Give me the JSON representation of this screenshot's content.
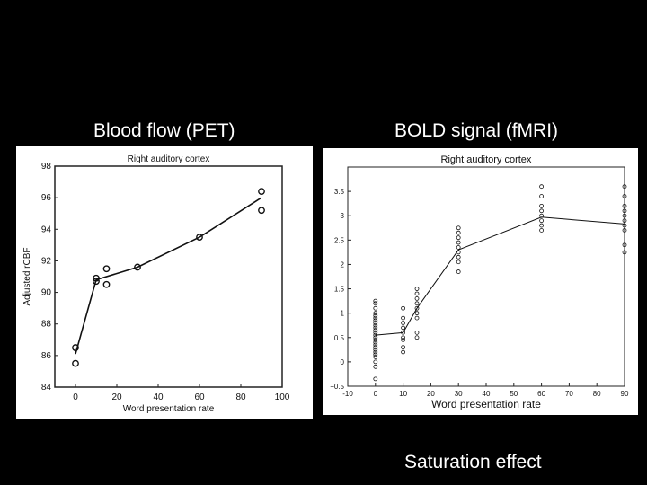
{
  "headings": {
    "left": "Blood flow (PET)",
    "right": "BOLD signal (fMRI)",
    "footer": "Saturation  effect"
  },
  "chart_data": [
    {
      "type": "line",
      "title": "Right auditory cortex",
      "xlabel": "Word presentation rate",
      "ylabel": "Adjusted rCBF",
      "xlim": [
        -10,
        100
      ],
      "ylim": [
        84,
        98
      ],
      "xticks": [
        0,
        20,
        40,
        60,
        80,
        100
      ],
      "yticks": [
        84,
        86,
        88,
        90,
        92,
        94,
        96,
        98
      ],
      "points": [
        {
          "x": 0,
          "y": 86.5
        },
        {
          "x": 0,
          "y": 85.5
        },
        {
          "x": 10,
          "y": 90.9
        },
        {
          "x": 10,
          "y": 90.7
        },
        {
          "x": 15,
          "y": 91.5
        },
        {
          "x": 15,
          "y": 90.5
        },
        {
          "x": 30,
          "y": 91.6
        },
        {
          "x": 60,
          "y": 93.5
        },
        {
          "x": 90,
          "y": 96.4
        },
        {
          "x": 90,
          "y": 95.2
        }
      ],
      "line": [
        {
          "x": 0,
          "y": 86.1
        },
        {
          "x": 10,
          "y": 90.8
        },
        {
          "x": 30,
          "y": 91.6
        },
        {
          "x": 60,
          "y": 93.5
        },
        {
          "x": 90,
          "y": 96.0
        }
      ]
    },
    {
      "type": "line",
      "title": "Right auditory cortex",
      "xlabel": "Word presentation rate",
      "ylabel": "",
      "xlim": [
        -10,
        90
      ],
      "ylim": [
        -0.5,
        4
      ],
      "xticks": [
        -10,
        0,
        10,
        20,
        30,
        40,
        50,
        60,
        70,
        80,
        90
      ],
      "yticks": [
        -0.5,
        0,
        0.5,
        1,
        1.5,
        2,
        2.5,
        3,
        3.5
      ],
      "ytick_labels": [
        "−0.5",
        "0",
        "0.5",
        "1",
        "1.5",
        "2",
        "2.5",
        "3",
        "3.5"
      ],
      "points": [
        {
          "x": 0,
          "y": 1.25
        },
        {
          "x": 0,
          "y": 1.2
        },
        {
          "x": 0,
          "y": 1.1
        },
        {
          "x": 0,
          "y": 1.0
        },
        {
          "x": 0,
          "y": 0.95
        },
        {
          "x": 0,
          "y": 0.9
        },
        {
          "x": 0,
          "y": 0.85
        },
        {
          "x": 0,
          "y": 0.8
        },
        {
          "x": 0,
          "y": 0.75
        },
        {
          "x": 0,
          "y": 0.7
        },
        {
          "x": 0,
          "y": 0.65
        },
        {
          "x": 0,
          "y": 0.6
        },
        {
          "x": 0,
          "y": 0.55
        },
        {
          "x": 0,
          "y": 0.5
        },
        {
          "x": 0,
          "y": 0.45
        },
        {
          "x": 0,
          "y": 0.4
        },
        {
          "x": 0,
          "y": 0.35
        },
        {
          "x": 0,
          "y": 0.3
        },
        {
          "x": 0,
          "y": 0.25
        },
        {
          "x": 0,
          "y": 0.2
        },
        {
          "x": 0,
          "y": 0.15
        },
        {
          "x": 0,
          "y": 0.1
        },
        {
          "x": 0,
          "y": 0.0
        },
        {
          "x": 0,
          "y": -0.1
        },
        {
          "x": 0,
          "y": -0.35
        },
        {
          "x": 10,
          "y": 1.1
        },
        {
          "x": 10,
          "y": 0.9
        },
        {
          "x": 10,
          "y": 0.8
        },
        {
          "x": 10,
          "y": 0.7
        },
        {
          "x": 10,
          "y": 0.6
        },
        {
          "x": 10,
          "y": 0.5
        },
        {
          "x": 10,
          "y": 0.45
        },
        {
          "x": 10,
          "y": 0.3
        },
        {
          "x": 10,
          "y": 0.2
        },
        {
          "x": 15,
          "y": 1.5
        },
        {
          "x": 15,
          "y": 1.4
        },
        {
          "x": 15,
          "y": 1.3
        },
        {
          "x": 15,
          "y": 1.2
        },
        {
          "x": 15,
          "y": 1.1
        },
        {
          "x": 15,
          "y": 1.0
        },
        {
          "x": 15,
          "y": 0.9
        },
        {
          "x": 15,
          "y": 0.6
        },
        {
          "x": 15,
          "y": 0.5
        },
        {
          "x": 30,
          "y": 2.75
        },
        {
          "x": 30,
          "y": 2.65
        },
        {
          "x": 30,
          "y": 2.55
        },
        {
          "x": 30,
          "y": 2.45
        },
        {
          "x": 30,
          "y": 2.35
        },
        {
          "x": 30,
          "y": 2.25
        },
        {
          "x": 30,
          "y": 2.15
        },
        {
          "x": 30,
          "y": 2.05
        },
        {
          "x": 30,
          "y": 1.85
        },
        {
          "x": 60,
          "y": 3.6
        },
        {
          "x": 60,
          "y": 3.4
        },
        {
          "x": 60,
          "y": 3.2
        },
        {
          "x": 60,
          "y": 3.1
        },
        {
          "x": 60,
          "y": 3.0
        },
        {
          "x": 60,
          "y": 2.9
        },
        {
          "x": 60,
          "y": 2.8
        },
        {
          "x": 60,
          "y": 2.7
        },
        {
          "x": 90,
          "y": 3.6
        },
        {
          "x": 90,
          "y": 3.4
        },
        {
          "x": 90,
          "y": 3.2
        },
        {
          "x": 90,
          "y": 3.1
        },
        {
          "x": 90,
          "y": 3.0
        },
        {
          "x": 90,
          "y": 2.9
        },
        {
          "x": 90,
          "y": 2.8
        },
        {
          "x": 90,
          "y": 2.7
        },
        {
          "x": 90,
          "y": 2.4
        },
        {
          "x": 90,
          "y": 2.25
        }
      ],
      "line": [
        {
          "x": 0,
          "y": 0.55
        },
        {
          "x": 10,
          "y": 0.6
        },
        {
          "x": 15,
          "y": 1.1
        },
        {
          "x": 30,
          "y": 2.3
        },
        {
          "x": 60,
          "y": 2.97
        },
        {
          "x": 90,
          "y": 2.83
        }
      ]
    }
  ]
}
